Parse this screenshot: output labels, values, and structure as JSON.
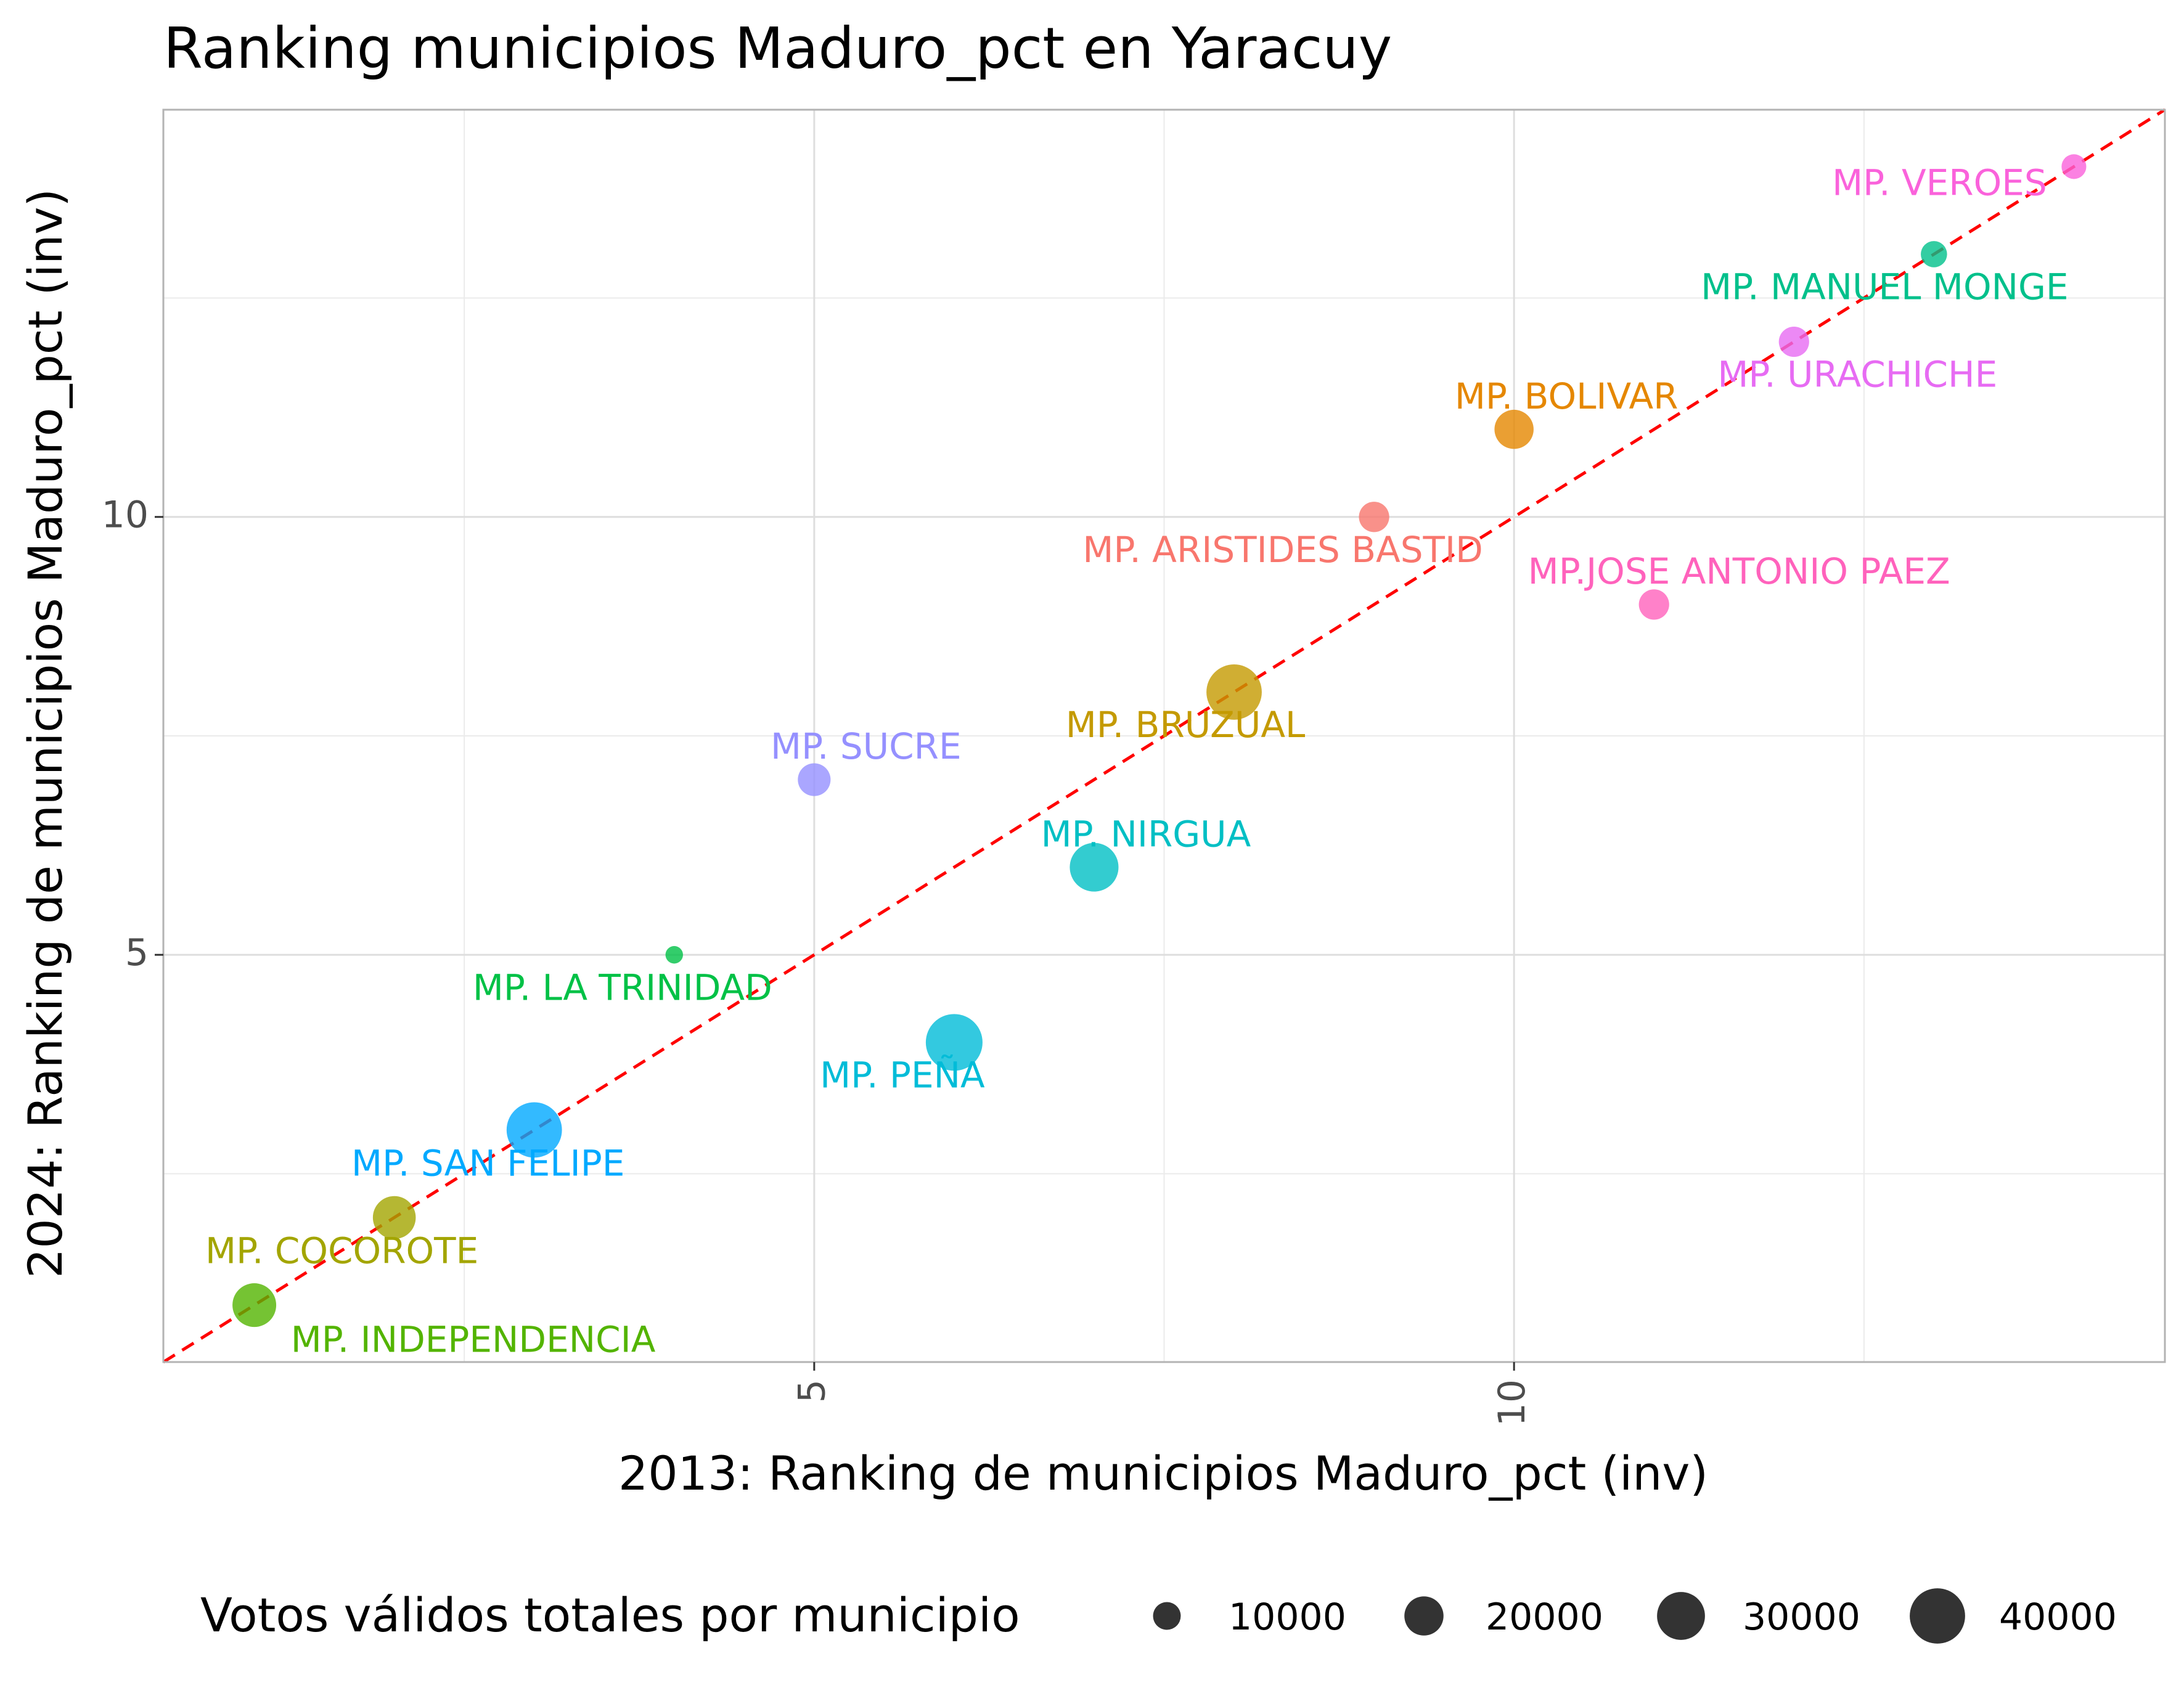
{
  "chart_data": {
    "type": "scatter",
    "title": "Ranking municipios Maduro_pct en Yaracuy",
    "xlabel": "2013: Ranking de municipios Maduro_pct (inv)",
    "ylabel": "2024: Ranking de municipios Maduro_pct (inv)",
    "xlim": [
      0.35,
      14.65
    ],
    "ylim": [
      0.35,
      14.65
    ],
    "x_ticks": [
      5,
      10
    ],
    "y_ticks": [
      5,
      10
    ],
    "x_tick_labels": [
      "5",
      "10"
    ],
    "y_tick_labels": [
      "5",
      "10"
    ],
    "grid": true,
    "reference_line": {
      "type": "identity",
      "style": "dashed",
      "color": "#ff0000"
    },
    "points": [
      {
        "label": "MP. INDEPENDENCIA",
        "x": 1,
        "y": 1,
        "votes": 25000,
        "color": "#53b400"
      },
      {
        "label": "MP. COCOROTE",
        "x": 2,
        "y": 2,
        "votes": 24000,
        "color": "#a3a500"
      },
      {
        "label": "MP. SAN FELIPE",
        "x": 3,
        "y": 3,
        "votes": 40000,
        "color": "#00a9ff"
      },
      {
        "label": "MP. PEÑA",
        "x": 6,
        "y": 4,
        "votes": 42000,
        "color": "#00bcd8"
      },
      {
        "label": "MP. LA TRINIDAD",
        "x": 4,
        "y": 5,
        "votes": 4000,
        "color": "#00c146"
      },
      {
        "label": "MP. NIRGUA",
        "x": 7,
        "y": 6,
        "votes": 31000,
        "color": "#00bfc4"
      },
      {
        "label": "MP. SUCRE",
        "x": 5,
        "y": 7,
        "votes": 14000,
        "color": "#9590ff"
      },
      {
        "label": "MP. BRUZUAL",
        "x": 8,
        "y": 8,
        "votes": 40000,
        "color": "#c49a00"
      },
      {
        "label": "MP.JOSE ANTONIO PAEZ",
        "x": 11,
        "y": 9,
        "votes": 12000,
        "color": "#ff62bc"
      },
      {
        "label": "MP. ARISTIDES BASTID",
        "x": 9,
        "y": 10,
        "votes": 12000,
        "color": "#f8766d"
      },
      {
        "label": "MP. BOLIVAR",
        "x": 10,
        "y": 11,
        "votes": 20000,
        "color": "#e58700"
      },
      {
        "label": "MP. URACHICHE",
        "x": 12,
        "y": 12,
        "votes": 12000,
        "color": "#e76bf3"
      },
      {
        "label": "MP. MANUEL MONGE",
        "x": 13,
        "y": 13,
        "votes": 9000,
        "color": "#00c08b"
      },
      {
        "label": "MP. VEROES",
        "x": 14,
        "y": 14,
        "votes": 8000,
        "color": "#fa62db"
      }
    ],
    "legend": {
      "title": "Votos válidos totales por municipio",
      "position": "bottom",
      "entries": [
        {
          "label": "10000",
          "value": 10000
        },
        {
          "label": "20000",
          "value": 20000
        },
        {
          "label": "30000",
          "value": 30000
        },
        {
          "label": "40000",
          "value": 40000
        }
      ]
    }
  }
}
